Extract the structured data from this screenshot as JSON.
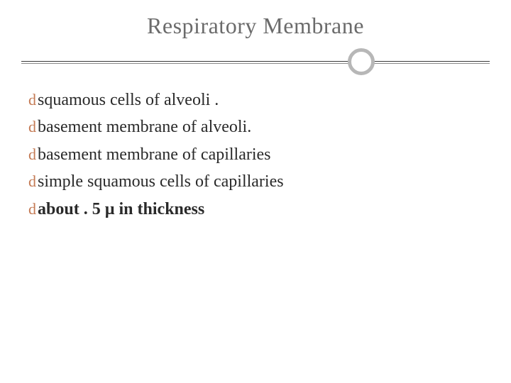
{
  "slide": {
    "title": "Respiratory Membrane",
    "title_color": "#6b6b6b",
    "title_fontsize": 32,
    "rule_color_top": "#3a3a3a",
    "rule_color_bottom": "#8a8a8a",
    "circle_border_color": "#b7b7b7",
    "bullet_glyph": "d",
    "bullet_color": "#c47a54",
    "text_color": "#2a2a2a",
    "text_fontsize": 24,
    "items": [
      {
        "text": "squamous cells of alveoli .",
        "bold": false
      },
      {
        "text": "basement membrane of alveoli.",
        "bold": false
      },
      {
        "text": "basement membrane of capillaries",
        "bold": false
      },
      {
        "text": "simple squamous cells of capillaries",
        "bold": false
      },
      {
        "text": "about . 5 µ in thickness",
        "bold": true
      }
    ]
  },
  "background_color": "#ffffff"
}
